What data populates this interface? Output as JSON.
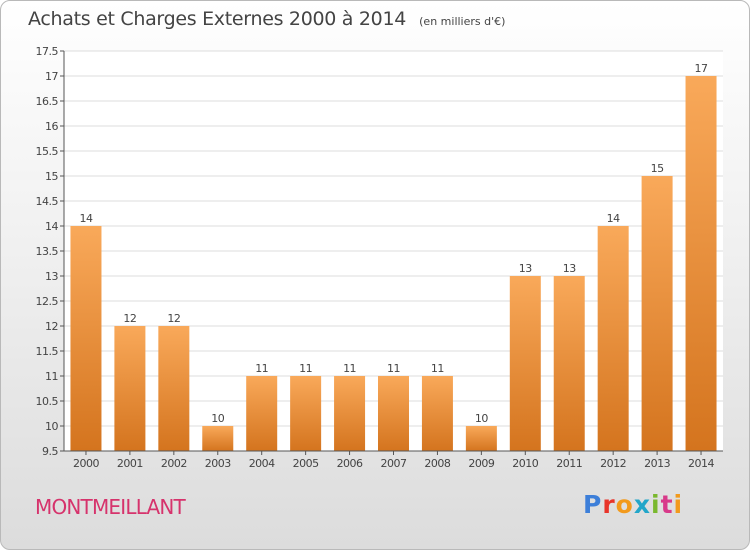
{
  "title": "Achats et Charges Externes 2000 à 2014",
  "subtitle": "(en milliers d'€)",
  "commune": "MONTMEILLANT",
  "brand": {
    "name": "Proxiti",
    "colors": [
      "#3d7fd9",
      "#e8342a",
      "#f29a1c",
      "#22a6c9",
      "#7ab82e",
      "#d83a8a",
      "#f29a1c"
    ]
  },
  "colors": {
    "bar_top": "#f9a95a",
    "bar_bottom": "#d4741e",
    "grid": "#dddddd",
    "axis": "#555555",
    "text": "#444444",
    "commune": "#d6336c"
  },
  "chart_data": {
    "type": "bar",
    "categories": [
      "2000",
      "2001",
      "2002",
      "2003",
      "2004",
      "2005",
      "2006",
      "2007",
      "2008",
      "2009",
      "2010",
      "2011",
      "2012",
      "2013",
      "2014"
    ],
    "values": [
      14,
      12,
      12,
      10,
      11,
      11,
      11,
      11,
      11,
      10,
      13,
      13,
      14,
      15,
      17
    ],
    "data_labels": [
      "14",
      "12",
      "12",
      "10",
      "11",
      "11",
      "11",
      "11",
      "11",
      "10",
      "13",
      "13",
      "14",
      "15",
      "17"
    ],
    "ylim": [
      9.5,
      17.5
    ],
    "yticks": [
      9.5,
      10,
      10.5,
      11,
      11.5,
      12,
      12.5,
      13,
      13.5,
      14,
      14.5,
      15,
      15.5,
      16,
      16.5,
      17,
      17.5
    ],
    "ytick_labels": [
      "9.5",
      "10",
      "10.5",
      "11",
      "11.5",
      "12",
      "12.5",
      "13",
      "13.5",
      "14",
      "14.5",
      "15",
      "15.5",
      "16",
      "16.5",
      "17",
      "17.5"
    ],
    "grid": true,
    "legend": false
  }
}
